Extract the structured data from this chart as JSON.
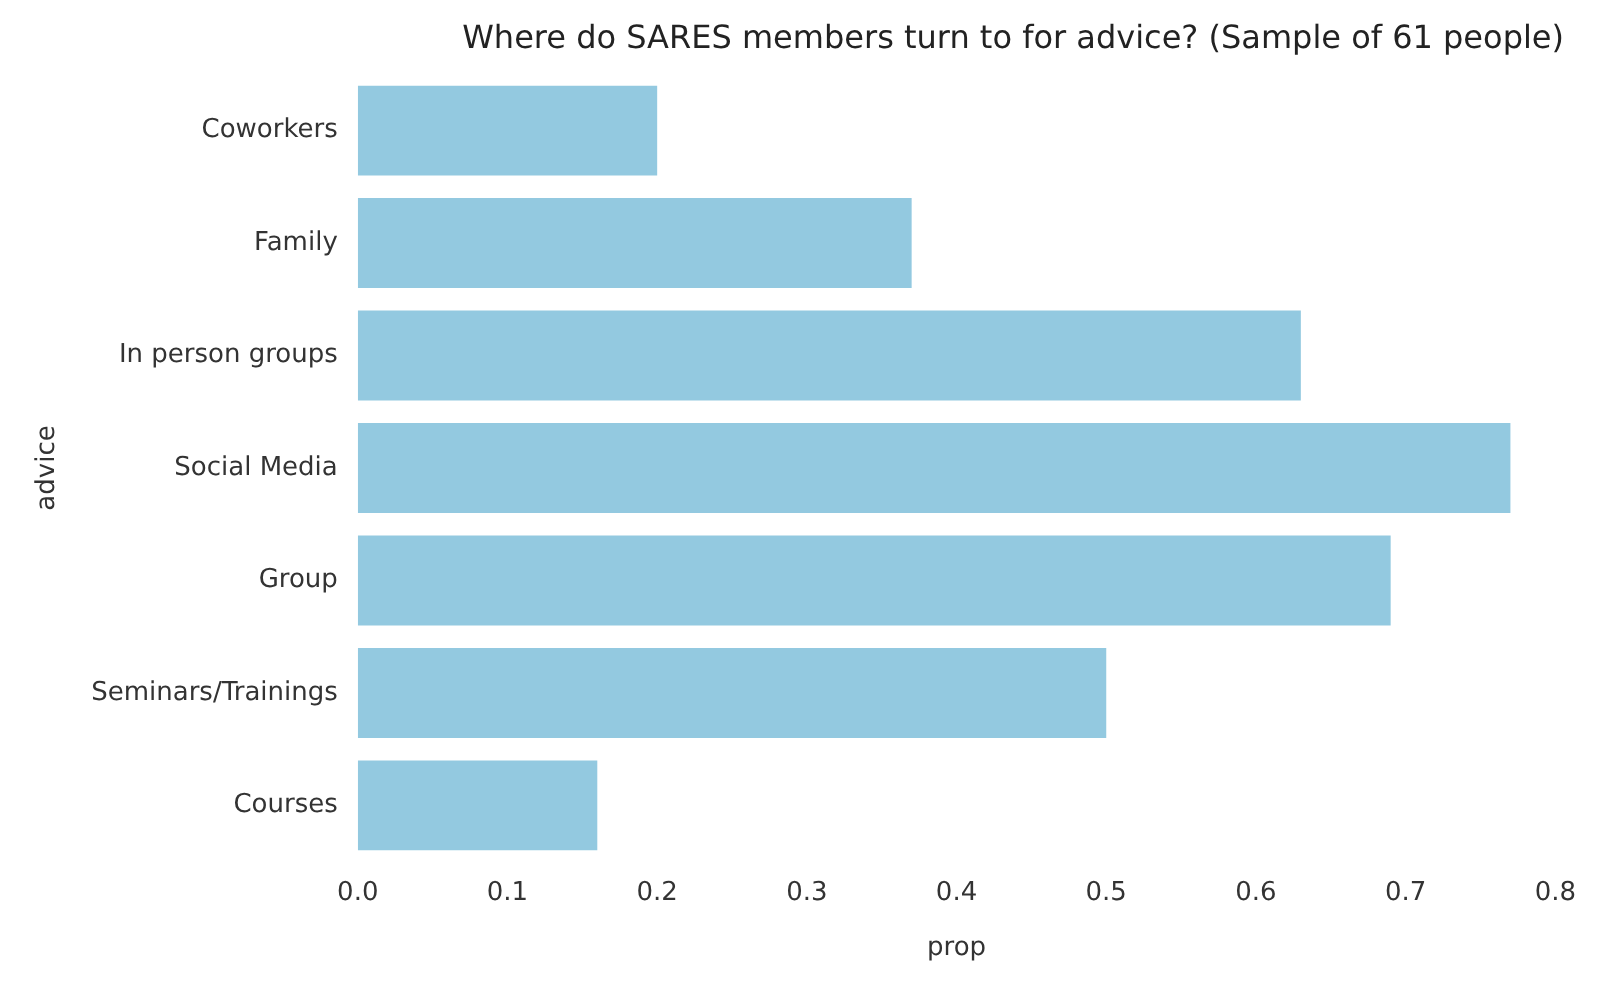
{
  "chart_data": {
    "type": "bar",
    "orientation": "horizontal",
    "title": "Where do SARES members turn to for advice? (Sample of 61 people)",
    "xlabel": "prop",
    "ylabel": "advice",
    "categories": [
      "Coworkers",
      "Family",
      "In person groups",
      "Social Media",
      "Group",
      "Seminars/Trainings",
      "Courses"
    ],
    "values": [
      0.2,
      0.37,
      0.63,
      0.77,
      0.69,
      0.5,
      0.16
    ],
    "color": "#93c9e0",
    "xlim": [
      0,
      0.8
    ],
    "xticks": [
      {
        "value": 0,
        "label": "0.0"
      },
      0.1,
      0.2,
      0.3,
      0.4,
      0.5,
      0.6,
      0.7,
      0.8
    ],
    "grid": false,
    "legend": false
  }
}
